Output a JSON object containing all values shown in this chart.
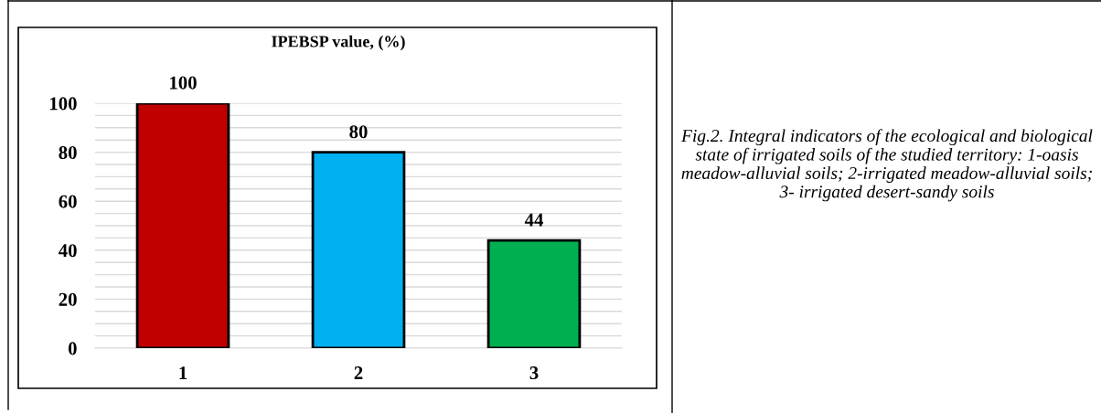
{
  "chart_data": {
    "type": "bar",
    "title": "IPEBSP value, (%)",
    "categories": [
      "1",
      "2",
      "3"
    ],
    "values": [
      100,
      80,
      44
    ],
    "colors": [
      "#c00000",
      "#00b0f0",
      "#00b050"
    ],
    "ylim": [
      0,
      100
    ],
    "yticks": [
      0,
      {
        "value": 5,
        "label": null
      },
      {
        "value": 10,
        "label": null
      },
      {
        "value": 15,
        "label": null
      },
      20,
      {
        "value": 25,
        "label": null
      },
      {
        "value": 30,
        "label": null
      },
      {
        "value": 35,
        "label": null
      },
      40,
      {
        "value": 45,
        "label": null
      },
      {
        "value": 50,
        "label": null
      },
      {
        "value": 55,
        "label": null
      },
      60,
      {
        "value": 65,
        "label": null
      },
      {
        "value": 70,
        "label": null
      },
      {
        "value": 75,
        "label": null
      },
      80,
      {
        "value": 85,
        "label": null
      },
      {
        "value": 90,
        "label": null
      },
      {
        "value": 95,
        "label": null
      },
      100
    ],
    "grid": "y",
    "data_labels": true,
    "legend": false,
    "annotations": [
      "Fig.2. Integral indicators of the ecological and biological state of irrigated soils of the studied territory: 1-oasis meadow-alluvial soils; 2-irrigated meadow-alluvial soils; 3- irrigated desert-sandy soils"
    ]
  }
}
